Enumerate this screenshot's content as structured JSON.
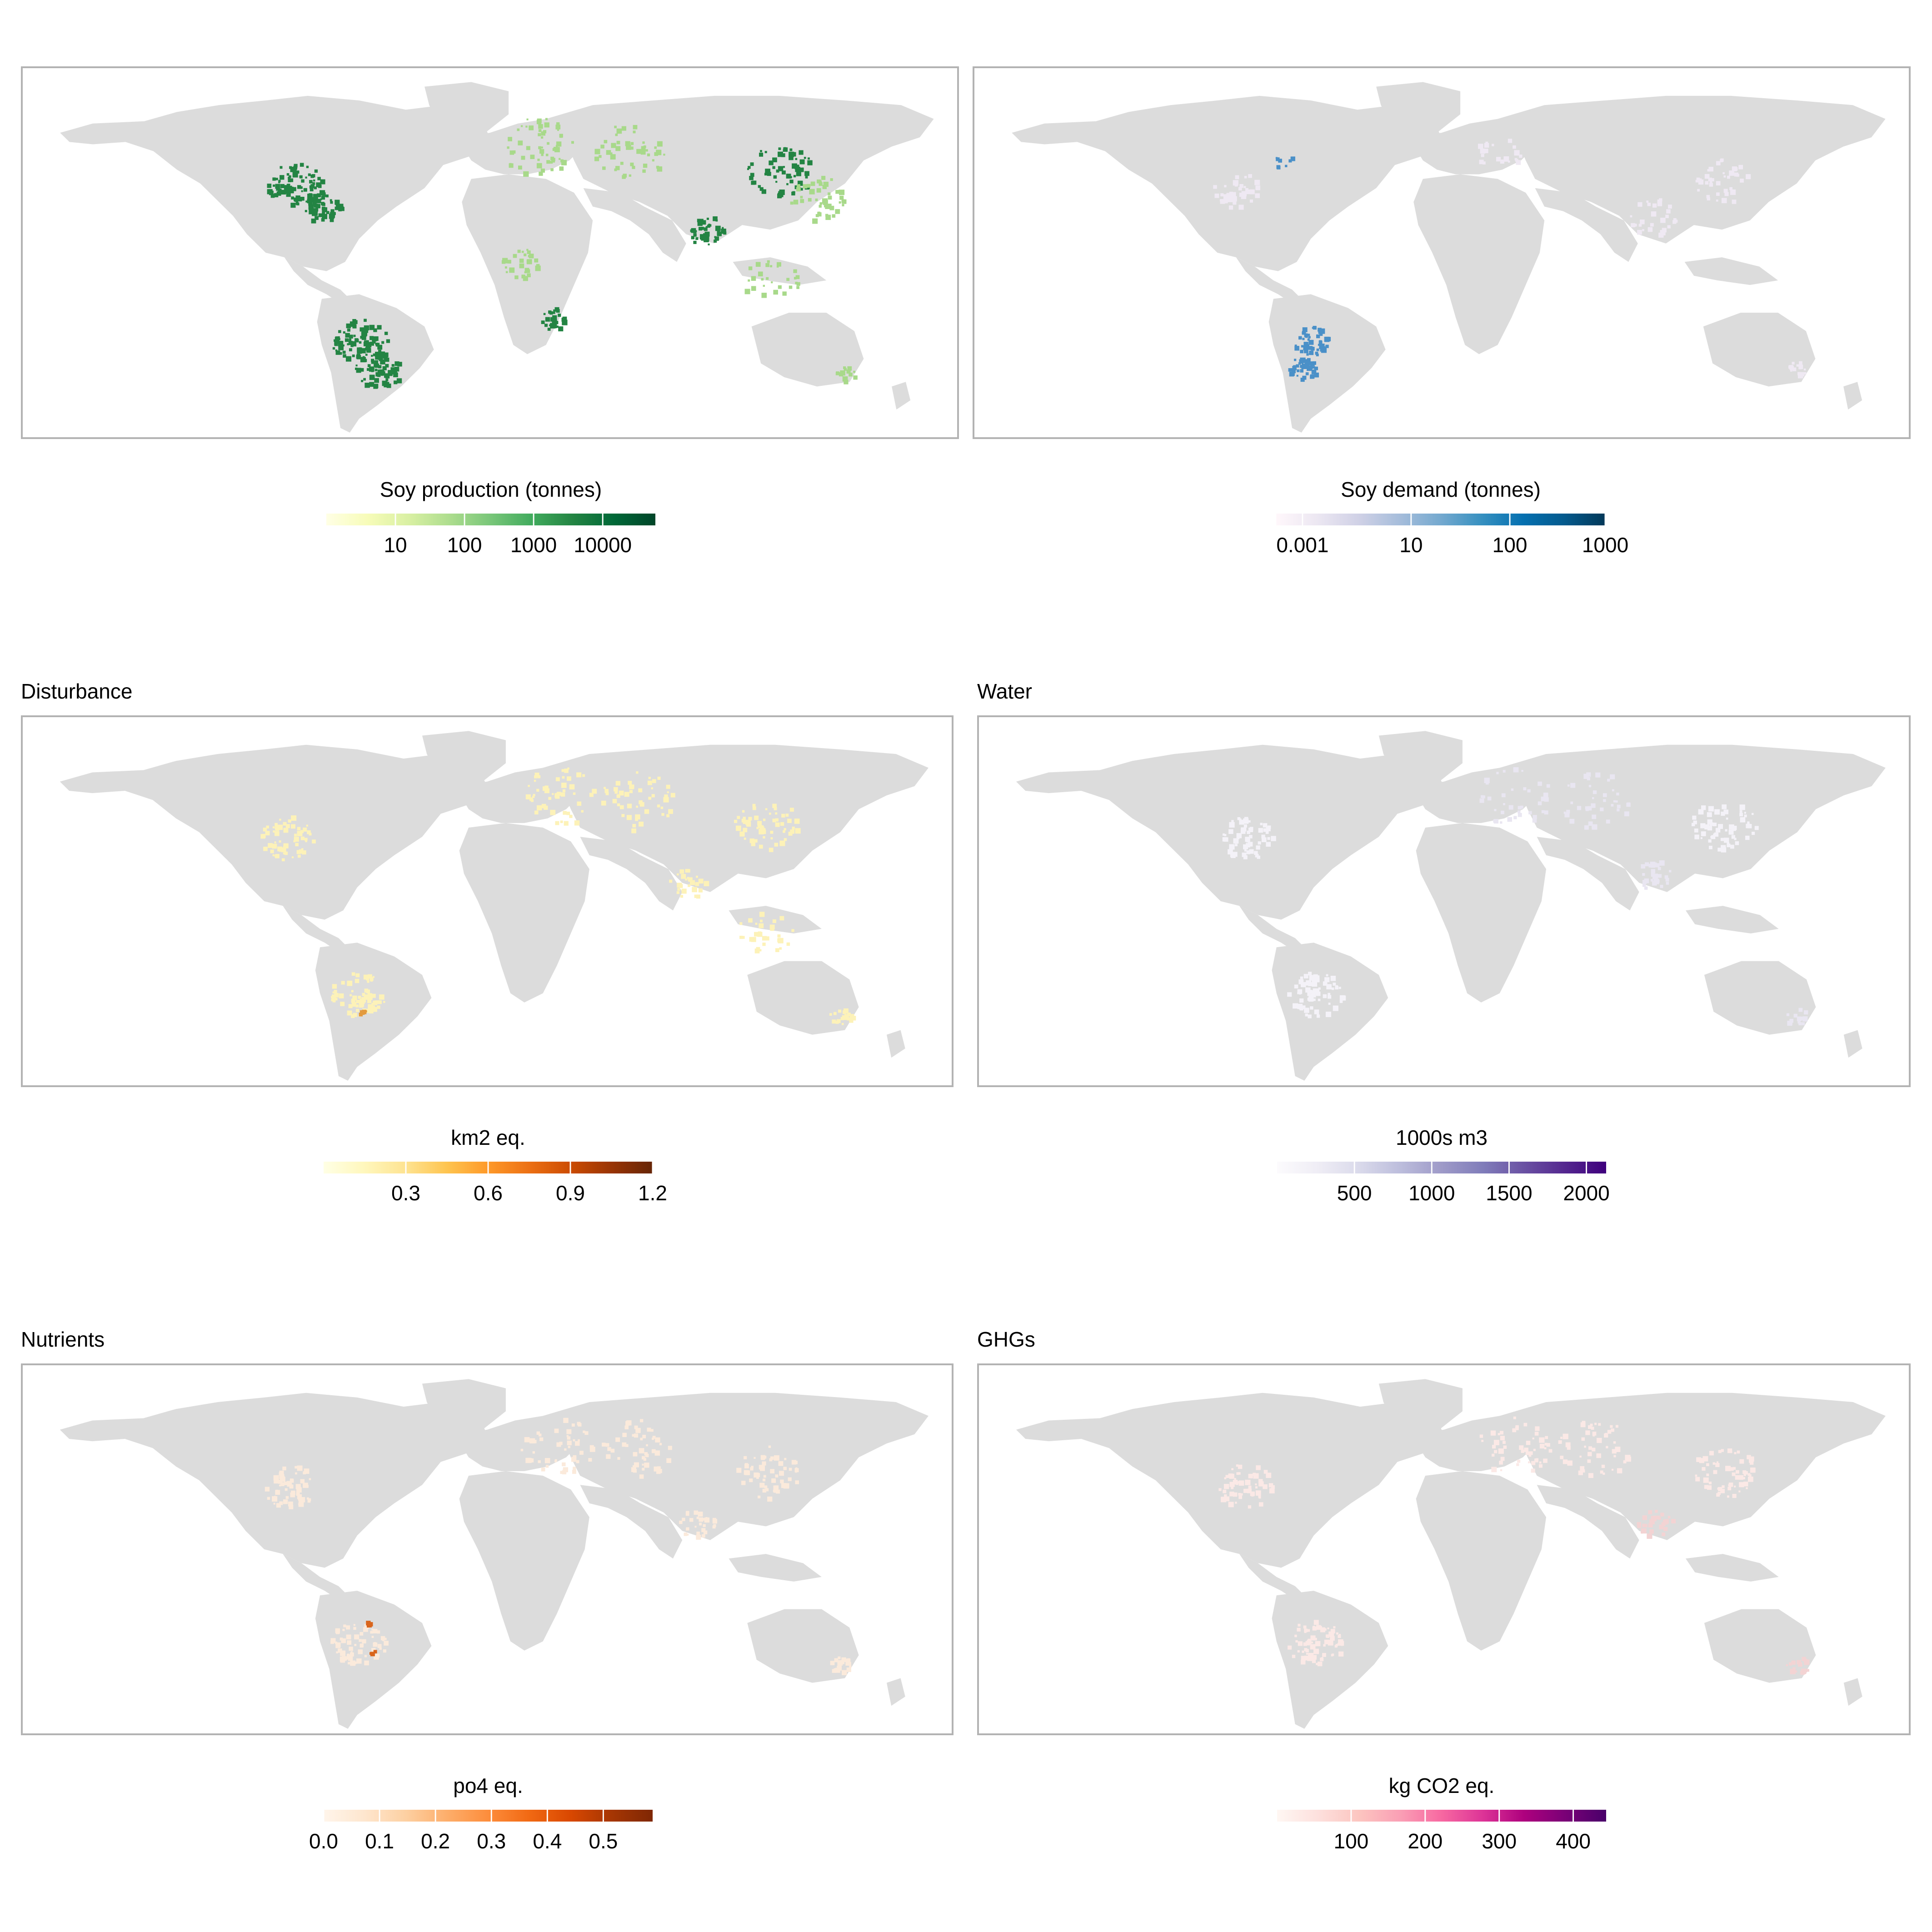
{
  "panels": [
    {
      "id": "production",
      "title": "",
      "legend": {
        "title": "Soy production (tonnes)",
        "ticks": [
          "10",
          "100",
          "1000",
          "10000"
        ],
        "tick_fractions": [
          0.21,
          0.42,
          0.63,
          0.84
        ],
        "colors": [
          "#ffffe5",
          "#f7fcb9",
          "#d9f0a3",
          "#addd8e",
          "#78c679",
          "#41ab5d",
          "#238443",
          "#006837",
          "#004529"
        ],
        "scale": "log"
      },
      "highlight_color": "#238443",
      "highlight_color_2": "#a8d98a"
    },
    {
      "id": "demand",
      "title": "",
      "legend": {
        "title": "Soy demand (tonnes)",
        "ticks": [
          "0.001",
          "10",
          "100",
          "1000"
        ],
        "tick_fractions": [
          0.08,
          0.41,
          0.71,
          1.0
        ],
        "colors": [
          "#fff7fb",
          "#ece7f2",
          "#d0d1e6",
          "#a6bddb",
          "#74a9cf",
          "#3690c0",
          "#0570b0",
          "#045a8d",
          "#023858"
        ],
        "scale": "log"
      },
      "highlight_color": "#4a90c8",
      "highlight_color_2": "#efe9f3"
    },
    {
      "id": "disturbance",
      "title": "Disturbance",
      "legend": {
        "title": "km2 eq.",
        "ticks": [
          "0.3",
          "0.6",
          "0.9",
          "1.2"
        ],
        "tick_fractions": [
          0.25,
          0.5,
          0.75,
          1.0
        ],
        "colors": [
          "#ffffe5",
          "#fff7bc",
          "#fee391",
          "#fec44f",
          "#fe9929",
          "#ec7014",
          "#cc4c02",
          "#993404",
          "#662506"
        ],
        "scale": "linear"
      },
      "highlight_color": "#fdf2b8",
      "highlight_color_2": "#e39a3e"
    },
    {
      "id": "water",
      "title": "Water",
      "legend": {
        "title": "1000s m3",
        "ticks": [
          "500",
          "1000",
          "1500",
          "2000"
        ],
        "tick_fractions": [
          0.235,
          0.47,
          0.705,
          0.94
        ],
        "colors": [
          "#fcfbfd",
          "#efedf5",
          "#dadaeb",
          "#bcbddc",
          "#9e9ac8",
          "#807dba",
          "#6a51a3",
          "#54278f",
          "#3f007d"
        ],
        "scale": "linear"
      },
      "highlight_color": "#f4f2f8",
      "highlight_color_2": "#e9e6f1"
    },
    {
      "id": "nutrients",
      "title": "Nutrients",
      "legend": {
        "title": "po4 eq.",
        "ticks": [
          "0.0",
          "0.1",
          "0.2",
          "0.3",
          "0.4",
          "0.5"
        ],
        "tick_fractions": [
          0.0,
          0.17,
          0.34,
          0.51,
          0.68,
          0.85
        ],
        "colors": [
          "#fff5eb",
          "#fee6ce",
          "#fdd0a2",
          "#fdae6b",
          "#fd8d3c",
          "#f16913",
          "#d94801",
          "#a63603",
          "#7f2704"
        ],
        "scale": "linear"
      },
      "highlight_color": "#fbeadb",
      "highlight_color_2": "#d9651c"
    },
    {
      "id": "ghgs",
      "title": "GHGs",
      "legend": {
        "title": "kg CO2 eq.",
        "ticks": [
          "100",
          "200",
          "300",
          "400"
        ],
        "tick_fractions": [
          0.225,
          0.45,
          0.675,
          0.9
        ],
        "colors": [
          "#fff7f3",
          "#fde0dd",
          "#fcc5c0",
          "#fa9fb5",
          "#f768a1",
          "#dd3497",
          "#ae017e",
          "#7a0177",
          "#49006a"
        ],
        "scale": "linear"
      },
      "highlight_color": "#fbe9e6",
      "highlight_color_2": "#f3d3d3"
    }
  ],
  "land_color": "#dcdcdc",
  "frame_color": "#b3b3b3"
}
